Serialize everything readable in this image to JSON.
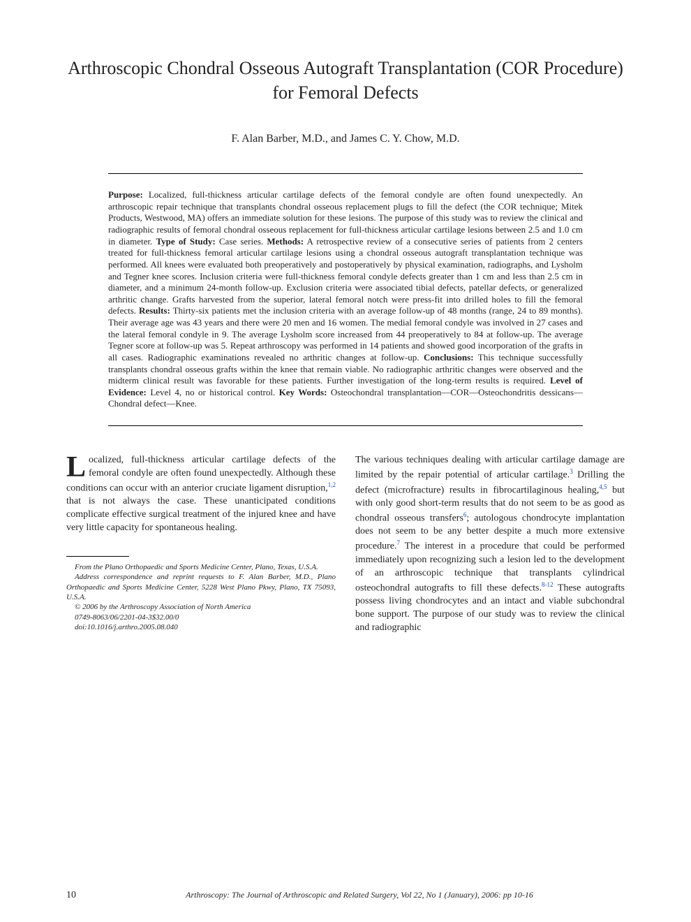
{
  "title": "Arthroscopic Chondral Osseous Autograft Transplantation (COR Procedure) for Femoral Defects",
  "authors": "F. Alan Barber, M.D., and James C. Y. Chow, M.D.",
  "abstract": {
    "purpose_label": "Purpose:",
    "purpose": " Localized, full-thickness articular cartilage defects of the femoral condyle are often found unexpectedly. An arthroscopic repair technique that transplants chondral osseous replacement plugs to fill the defect (the COR technique; Mitek Products, Westwood, MA) offers an immediate solution for these lesions. The purpose of this study was to review the clinical and radiographic results of femoral chondral osseous replacement for full-thickness articular cartilage lesions between 2.5 and 1.0 cm in diameter. ",
    "type_label": "Type of Study:",
    "type": " Case series. ",
    "methods_label": "Methods:",
    "methods": " A retrospective review of a consecutive series of patients from 2 centers treated for full-thickness femoral articular cartilage lesions using a chondral osseous autograft transplantation technique was performed. All knees were evaluated both preoperatively and postoperatively by physical examination, radiographs, and Lysholm and Tegner knee scores. Inclusion criteria were full-thickness femoral condyle defects greater than 1 cm and less than 2.5 cm in diameter, and a minimum 24-month follow-up. Exclusion criteria were associated tibial defects, patellar defects, or generalized arthritic change. Grafts harvested from the superior, lateral femoral notch were press-fit into drilled holes to fill the femoral defects. ",
    "results_label": "Results:",
    "results": " Thirty-six patients met the inclusion criteria with an average follow-up of 48 months (range, 24 to 89 months). Their average age was 43 years and there were 20 men and 16 women. The medial femoral condyle was involved in 27 cases and the lateral femoral condyle in 9. The average Lysholm score increased from 44 preoperatively to 84 at follow-up. The average Tegner score at follow-up was 5. Repeat arthroscopy was performed in 14 patients and showed good incorporation of the grafts in all cases. Radiographic examinations revealed no arthritic changes at follow-up. ",
    "conclusions_label": "Conclusions:",
    "conclusions": " This technique successfully transplants chondral osseous grafts within the knee that remain viable. No radiographic arthritic changes were observed and the midterm clinical result was favorable for these patients. Further investigation of the long-term results is required. ",
    "loe_label": "Level of Evidence:",
    "loe": " Level 4, no or historical control. ",
    "keywords_label": "Key Words:",
    "keywords": " Osteochondral transplantation—COR—Osteochondritis dessicans—Chondral defect—Knee."
  },
  "body": {
    "dropcap": "L",
    "col1_p1a": "ocalized, full-thickness articular cartilage defects of the femoral condyle are often found unexpectedly. Although these conditions can occur with an anterior cruciate ligament disruption,",
    "sup1": "1,2",
    "col1_p1b": " that is not always the case. These unanticipated conditions complicate effective surgical treatment of the injured knee and have very little capacity for spontaneous healing.",
    "col2_p1a": "The various techniques dealing with articular cartilage damage are limited by the repair potential of articular cartilage.",
    "sup3": "3",
    "col2_p1b": " Drilling the defect (microfracture) results in fibrocartilaginous healing,",
    "sup45": "4,5",
    "col2_p1c": " but with only good short-term results that do not seem to be as good as chondral osseous transfers",
    "sup6": "6",
    "col2_p1d": "; autologous chondrocyte implantation does not seem to be any better despite a much more extensive procedure.",
    "sup7": "7",
    "col2_p1e": " The interest in a procedure that could be performed immediately upon recognizing such a lesion led to the development of an arthroscopic technique that transplants cylindrical osteochondral autografts to fill these defects.",
    "sup812": "8-12",
    "col2_p1f": " These autografts possess living chondrocytes and an intact and viable subchondral bone support. The purpose of our study was to review the clinical and radiographic"
  },
  "footnotes": {
    "f1": "From the Plano Orthopaedic and Sports Medicine Center, Plano, Texas, U.S.A.",
    "f2": "Address correspondence and reprint requests to F. Alan Barber, M.D., Plano Orthopaedic and Sports Medicine Center, 5228 West Plano Pkwy, Plano, TX 75093, U.S.A.",
    "f3": "© 2006 by the Arthroscopy Association of North America",
    "f4": "0749-8063/06/2201-04-3$32.00/0",
    "f5": "doi:10.1016/j.arthro.2005.08.040"
  },
  "footer": {
    "page": "10",
    "journal": "Arthroscopy: The Journal of Arthroscopic and Related Surgery, Vol 22, No 1 (January), 2006: pp 10-16"
  }
}
